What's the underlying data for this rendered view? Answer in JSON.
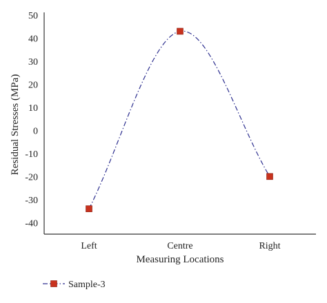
{
  "chart_data": {
    "type": "line",
    "categories": [
      "Left",
      "Centre",
      "Right"
    ],
    "series": [
      {
        "name": "Sample-3",
        "values": [
          -34,
          43,
          -20
        ]
      }
    ],
    "xlabel": "Measuring Locations",
    "ylabel": "Residual Stresses (MPa)",
    "ylim": [
      -45,
      50
    ],
    "yticks": [
      50,
      40,
      30,
      20,
      10,
      0,
      -10,
      -20,
      -30,
      -40
    ],
    "smooth": true,
    "line_style": "dash-dot",
    "line_color": "#2d2f8f",
    "marker": "square",
    "marker_color": "#c8321e",
    "grid": false,
    "legend_position": "bottom-left"
  }
}
